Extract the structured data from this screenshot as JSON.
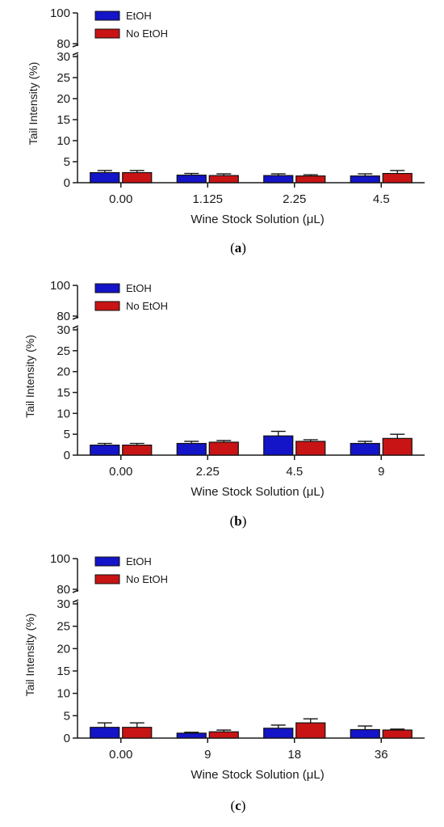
{
  "colors": {
    "etoh": "#1414c8",
    "no_etoh": "#c81414",
    "axis": "#1a1a1a"
  },
  "chart_data": [
    {
      "type": "bar",
      "panel_label": "(a)",
      "categories": [
        "0.00",
        "1.125",
        "2.25",
        "4.5"
      ],
      "series": [
        {
          "name": "EtOH",
          "values": [
            2.4,
            1.8,
            1.7,
            1.6
          ],
          "errors": [
            0.5,
            0.4,
            0.4,
            0.5
          ]
        },
        {
          "name": "No EtOH",
          "values": [
            2.4,
            1.7,
            1.6,
            2.2
          ],
          "errors": [
            0.5,
            0.4,
            0.3,
            0.7
          ]
        }
      ],
      "xlabel": "Wine Stock Solution (μL)",
      "ylabel": "Tail Intensity (%)",
      "y_lower_ticks": [
        "0",
        "5",
        "10",
        "15",
        "20",
        "25",
        "30"
      ],
      "y_upper_ticks": [
        "80",
        "100"
      ],
      "ylim_lower": [
        0,
        30
      ],
      "ylim_upper": [
        80,
        100
      ],
      "y_axis_break": true,
      "legend_position": "top-left"
    },
    {
      "type": "bar",
      "panel_label": "(b)",
      "categories": [
        "0.00",
        "2.25",
        "4.5",
        "9"
      ],
      "series": [
        {
          "name": "EtOH",
          "values": [
            2.4,
            2.8,
            4.6,
            2.8
          ],
          "errors": [
            0.4,
            0.5,
            1.1,
            0.5
          ]
        },
        {
          "name": "No EtOH",
          "values": [
            2.4,
            3.1,
            3.3,
            4.0
          ],
          "errors": [
            0.4,
            0.4,
            0.4,
            1.0
          ]
        }
      ],
      "xlabel": "Wine Stock Solution (μL)",
      "ylabel": "Tail Intensity (%)",
      "y_lower_ticks": [
        "0",
        "5",
        "10",
        "15",
        "20",
        "25",
        "30"
      ],
      "y_upper_ticks": [
        "80",
        "100"
      ],
      "ylim_lower": [
        0,
        30
      ],
      "ylim_upper": [
        80,
        100
      ],
      "y_axis_break": true,
      "legend_position": "top-left"
    },
    {
      "type": "bar",
      "panel_label": "(c)",
      "categories": [
        "0.00",
        "9",
        "18",
        "36"
      ],
      "series": [
        {
          "name": "EtOH",
          "values": [
            2.4,
            1.1,
            2.2,
            1.9
          ],
          "errors": [
            1.0,
            0.2,
            0.7,
            0.8
          ]
        },
        {
          "name": "No EtOH",
          "values": [
            2.4,
            1.4,
            3.4,
            1.8
          ],
          "errors": [
            1.0,
            0.4,
            0.9,
            0.2
          ]
        }
      ],
      "xlabel": "Wine Stock Solution (μL)",
      "ylabel": "Tail Intensity (%)",
      "y_lower_ticks": [
        "0",
        "5",
        "10",
        "15",
        "20",
        "25",
        "30"
      ],
      "y_upper_ticks": [
        "80",
        "100"
      ],
      "ylim_lower": [
        0,
        30
      ],
      "ylim_upper": [
        80,
        100
      ],
      "y_axis_break": true,
      "legend_position": "top-left"
    }
  ]
}
